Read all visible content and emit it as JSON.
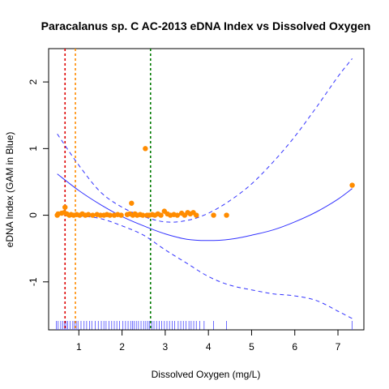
{
  "chart_data": {
    "type": "scatter",
    "title": "Paracalanus sp. C AC-2013 eDNA Index vs Dissolved Oxygen",
    "xlabel": "Dissolved Oxygen (mg/L)",
    "ylabel": "eDNA Index (GAM in Blue)",
    "xlim": [
      0.3,
      7.6
    ],
    "ylim": [
      -1.72,
      2.5
    ],
    "x_ticks": [
      1,
      2,
      3,
      4,
      5,
      6,
      7
    ],
    "y_ticks": [
      -1,
      0,
      1,
      2
    ],
    "grid": false,
    "colors": {
      "points": "#ff8c00",
      "gam": "#3333ff",
      "rug": "#4a4aff",
      "vline_red": "#dd0000",
      "vline_orange": "#ff8c00",
      "vline_green": "#007a00"
    },
    "reference_lines": [
      {
        "x": 0.68,
        "color": "#dd0000"
      },
      {
        "x": 0.92,
        "color": "#ff8c00"
      },
      {
        "x": 2.66,
        "color": "#007a00"
      }
    ],
    "points": [
      [
        0.5,
        0.0
      ],
      [
        0.52,
        0.02
      ],
      [
        0.6,
        0.03
      ],
      [
        0.66,
        0.04
      ],
      [
        0.68,
        0.12
      ],
      [
        0.72,
        0.02
      ],
      [
        0.78,
        0.0
      ],
      [
        0.82,
        0.01
      ],
      [
        0.88,
        0.0
      ],
      [
        0.95,
        0.01
      ],
      [
        1.02,
        0.0
      ],
      [
        1.08,
        0.02
      ],
      [
        1.15,
        0.0
      ],
      [
        1.22,
        0.01
      ],
      [
        1.32,
        0.0
      ],
      [
        1.42,
        0.01
      ],
      [
        1.5,
        0.0
      ],
      [
        1.58,
        0.0
      ],
      [
        1.65,
        0.01
      ],
      [
        1.72,
        0.0
      ],
      [
        1.82,
        0.0
      ],
      [
        1.9,
        0.01
      ],
      [
        1.98,
        0.0
      ],
      [
        2.12,
        0.01
      ],
      [
        2.18,
        0.02
      ],
      [
        2.22,
        0.18
      ],
      [
        2.25,
        0.0
      ],
      [
        2.3,
        0.02
      ],
      [
        2.35,
        0.0
      ],
      [
        2.42,
        0.01
      ],
      [
        2.48,
        0.0
      ],
      [
        2.54,
        1.0
      ],
      [
        2.58,
        0.0
      ],
      [
        2.63,
        0.0
      ],
      [
        2.7,
        0.01
      ],
      [
        2.76,
        0.0
      ],
      [
        2.83,
        0.02
      ],
      [
        2.9,
        0.0
      ],
      [
        2.98,
        0.06
      ],
      [
        3.05,
        0.02
      ],
      [
        3.12,
        0.0
      ],
      [
        3.2,
        0.01
      ],
      [
        3.28,
        0.0
      ],
      [
        3.38,
        0.03
      ],
      [
        3.45,
        0.0
      ],
      [
        3.52,
        0.04
      ],
      [
        3.58,
        0.02
      ],
      [
        3.65,
        0.04
      ],
      [
        3.72,
        0.0
      ],
      [
        4.12,
        0.0
      ],
      [
        4.42,
        0.0
      ],
      [
        7.33,
        0.45
      ]
    ],
    "gam_fit": [
      [
        0.5,
        0.62
      ],
      [
        1.0,
        0.37
      ],
      [
        1.5,
        0.16
      ],
      [
        2.0,
        -0.02
      ],
      [
        2.5,
        -0.16
      ],
      [
        3.0,
        -0.28
      ],
      [
        3.5,
        -0.36
      ],
      [
        4.0,
        -0.38
      ],
      [
        4.5,
        -0.36
      ],
      [
        5.0,
        -0.3
      ],
      [
        5.5,
        -0.22
      ],
      [
        6.0,
        -0.1
      ],
      [
        6.5,
        0.05
      ],
      [
        7.0,
        0.24
      ],
      [
        7.33,
        0.4
      ]
    ],
    "gam_upper": [
      [
        0.5,
        1.22
      ],
      [
        1.0,
        0.75
      ],
      [
        1.5,
        0.35
      ],
      [
        2.0,
        0.12
      ],
      [
        2.5,
        -0.02
      ],
      [
        3.0,
        -0.1
      ],
      [
        3.5,
        -0.08
      ],
      [
        4.0,
        0.03
      ],
      [
        4.5,
        0.22
      ],
      [
        5.0,
        0.47
      ],
      [
        5.5,
        0.8
      ],
      [
        6.0,
        1.18
      ],
      [
        6.5,
        1.62
      ],
      [
        7.0,
        2.08
      ],
      [
        7.33,
        2.35
      ]
    ],
    "gam_lower": [
      [
        0.5,
        0.02
      ],
      [
        1.0,
        -0.01
      ],
      [
        1.5,
        -0.05
      ],
      [
        2.0,
        -0.16
      ],
      [
        2.5,
        -0.3
      ],
      [
        3.0,
        -0.52
      ],
      [
        3.5,
        -0.72
      ],
      [
        4.0,
        -0.92
      ],
      [
        4.5,
        -1.05
      ],
      [
        5.0,
        -1.12
      ],
      [
        5.5,
        -1.18
      ],
      [
        6.0,
        -1.21
      ],
      [
        6.5,
        -1.28
      ],
      [
        7.0,
        -1.44
      ],
      [
        7.33,
        -1.55
      ]
    ],
    "rug_x": [
      0.48,
      0.52,
      0.58,
      0.63,
      0.67,
      0.7,
      0.74,
      0.8,
      0.86,
      0.9,
      0.94,
      0.98,
      1.05,
      1.12,
      1.18,
      1.25,
      1.3,
      1.38,
      1.45,
      1.52,
      1.58,
      1.63,
      1.7,
      1.76,
      1.82,
      1.88,
      1.94,
      2.02,
      2.08,
      2.14,
      2.2,
      2.24,
      2.28,
      2.33,
      2.38,
      2.44,
      2.5,
      2.55,
      2.6,
      2.64,
      2.69,
      2.74,
      2.8,
      2.86,
      2.92,
      2.98,
      3.04,
      3.1,
      3.16,
      3.22,
      3.3,
      3.36,
      3.42,
      3.48,
      3.55,
      3.6,
      3.66,
      3.72,
      3.8,
      3.9,
      4.12,
      4.42,
      7.33
    ]
  }
}
